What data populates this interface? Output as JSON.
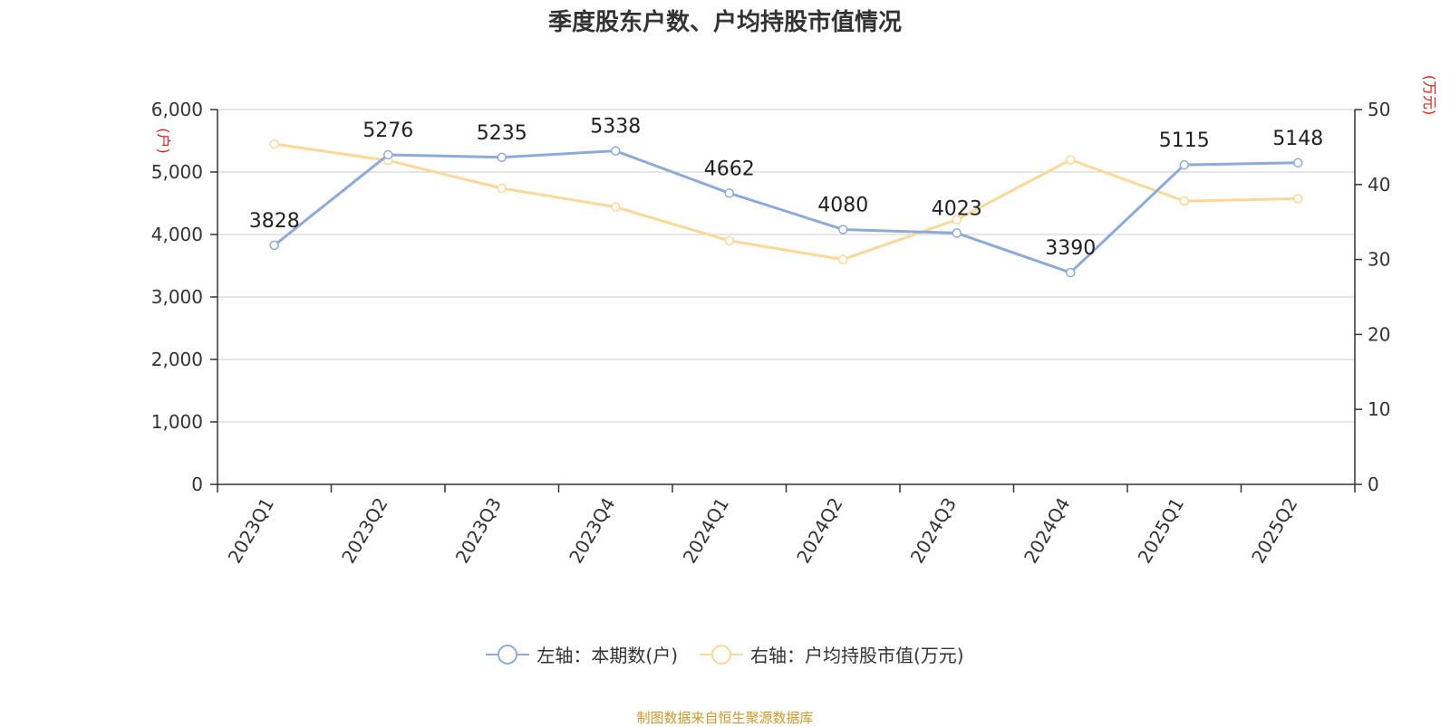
{
  "footer": "制图数据来自恒生聚源数据库",
  "chart_data": {
    "type": "line",
    "title": "季度股东户数、户均持股市值情况",
    "categories": [
      "2023Q1",
      "2023Q2",
      "2023Q3",
      "2023Q4",
      "2024Q1",
      "2024Q2",
      "2024Q3",
      "2024Q4",
      "2025Q1",
      "2025Q2"
    ],
    "y_left": {
      "label": "(户)",
      "min": 0,
      "max": 6000,
      "ticks": [
        "0",
        "1,000",
        "2,000",
        "3,000",
        "4,000",
        "5,000",
        "6,000"
      ]
    },
    "y_right": {
      "label": "(万元)",
      "min": 0,
      "max": 50,
      "ticks": [
        "0",
        "10",
        "20",
        "30",
        "40",
        "50"
      ]
    },
    "grid": true,
    "legend_position": "bottom",
    "series": [
      {
        "name": "左轴：本期数(户)",
        "axis": "left",
        "color": "#8eaad8",
        "values": [
          3828,
          5276,
          5235,
          5338,
          4662,
          4080,
          4023,
          3390,
          5115,
          5148
        ],
        "show_labels": true
      },
      {
        "name": "右轴：户均持股市值(万元)",
        "axis": "right",
        "color": "#fcd898",
        "values": [
          45.4,
          43.2,
          39.5,
          37.0,
          32.5,
          30.0,
          35.3,
          43.3,
          37.8,
          38.1
        ],
        "show_labels": false
      }
    ]
  }
}
